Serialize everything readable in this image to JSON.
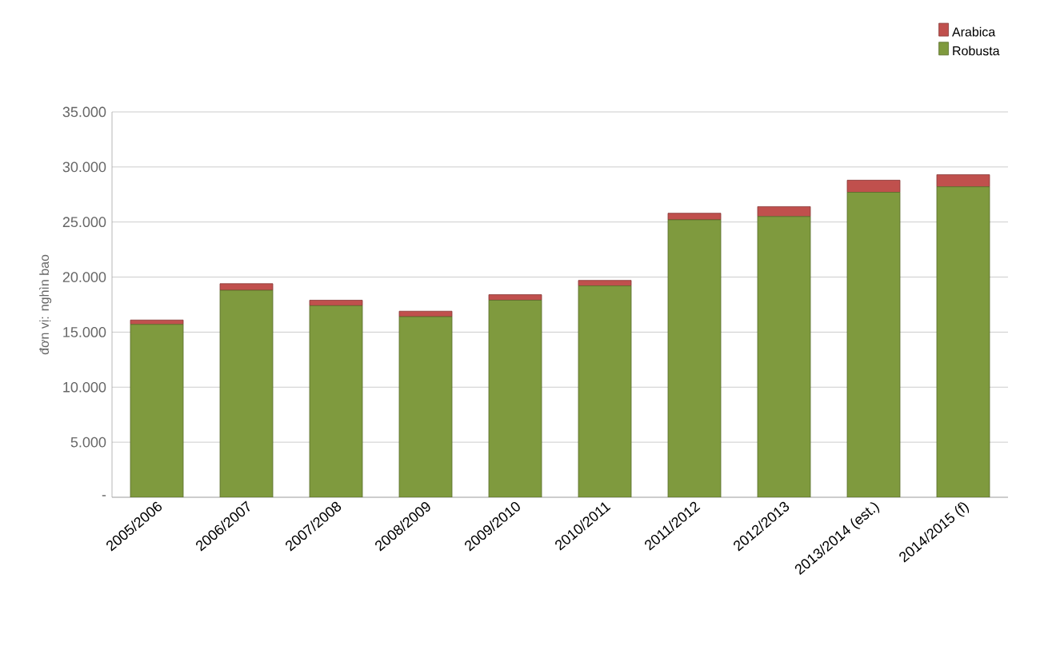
{
  "chart_data": {
    "type": "bar",
    "stacked": true,
    "ylabel": "đơn vị: nghìn bao",
    "categories": [
      "2005/2006",
      "2006/2007",
      "2007/2008",
      "2008/2009",
      "2009/2010",
      "2010/2011",
      "2011/2012",
      "2012/2013",
      "2013/2014 (est.)",
      "2014/2015 (f)"
    ],
    "series": [
      {
        "name": "Robusta",
        "color": "#7f9a3e",
        "values": [
          15700,
          18800,
          17400,
          16400,
          17900,
          19200,
          25200,
          25500,
          27700,
          28200
        ]
      },
      {
        "name": "Arabica",
        "color": "#c0504d",
        "values": [
          400,
          600,
          500,
          500,
          500,
          500,
          600,
          900,
          1100,
          1100
        ]
      }
    ],
    "ylim": [
      0,
      35000
    ],
    "yticks": [
      {
        "value": 0,
        "label": "-"
      },
      {
        "value": 5000,
        "label": "5.000"
      },
      {
        "value": 10000,
        "label": "10.000"
      },
      {
        "value": 15000,
        "label": "15.000"
      },
      {
        "value": 20000,
        "label": "20.000"
      },
      {
        "value": 25000,
        "label": "25.000"
      },
      {
        "value": 30000,
        "label": "30.000"
      },
      {
        "value": 35000,
        "label": "35.000"
      }
    ],
    "grid": "y",
    "legend": "top right"
  }
}
